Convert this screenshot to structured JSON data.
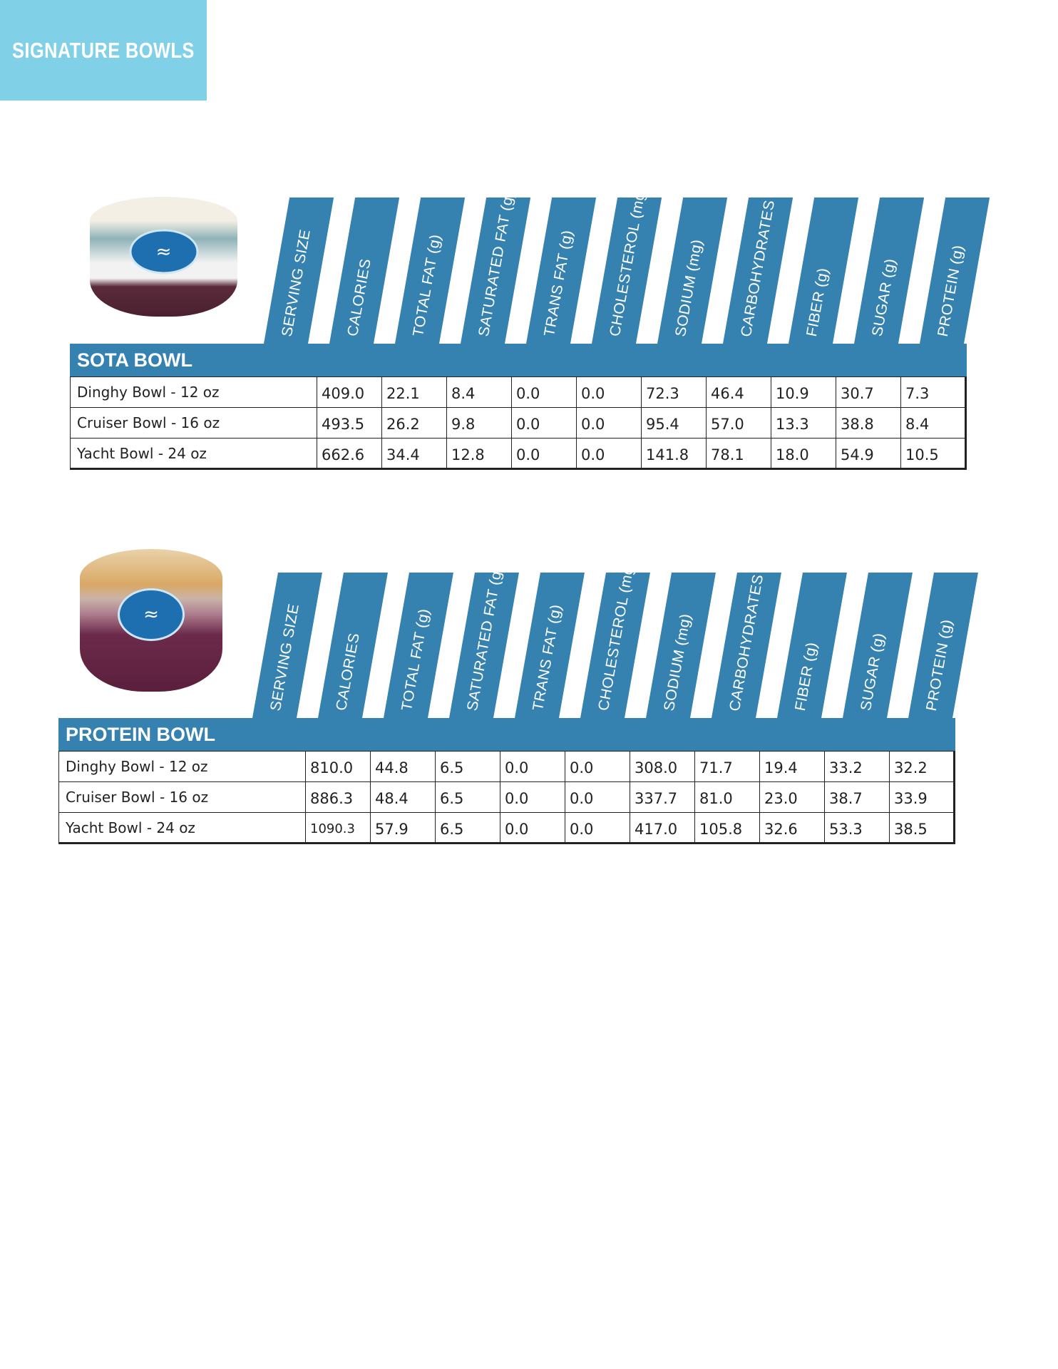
{
  "banner": {
    "title": "SIGNATURE BOWLS",
    "color": "#80d1e8"
  },
  "accent_color": "#3581b0",
  "columns": [
    "SERVING SIZE",
    "CALORIES",
    "TOTAL FAT (g)",
    "SATURATED FAT (g)",
    "TRANS FAT (g)",
    "CHOLESTEROL (mg)",
    "SODIUM (mg)",
    "CARBOHYDRATES",
    "FIBER (g)",
    "SUGAR (g)",
    "PROTEIN (g)"
  ],
  "sections": [
    {
      "title": "SOTA BOWL",
      "image": "bowl-photo",
      "rows": [
        {
          "size": "Dinghy Bowl - 12 oz",
          "values": [
            "409.0",
            "22.1",
            "8.4",
            "0.0",
            "0.0",
            "72.3",
            "46.4",
            "10.9",
            "30.7",
            "7.3"
          ]
        },
        {
          "size": "Cruiser Bowl - 16 oz",
          "values": [
            "493.5",
            "26.2",
            "9.8",
            "0.0",
            "0.0",
            "95.4",
            "57.0",
            "13.3",
            "38.8",
            "8.4"
          ]
        },
        {
          "size": "Yacht Bowl - 24 oz",
          "values": [
            "662.6",
            "34.4",
            "12.8",
            "0.0",
            "0.0",
            "141.8",
            "78.1",
            "18.0",
            "54.9",
            "10.5"
          ]
        }
      ]
    },
    {
      "title": "PROTEIN BOWL",
      "image": "bowl-photo",
      "rows": [
        {
          "size": "Dinghy Bowl - 12 oz",
          "values": [
            "810.0",
            "44.8",
            "6.5",
            "0.0",
            "0.0",
            "308.0",
            "71.7",
            "19.4",
            "33.2",
            "32.2"
          ]
        },
        {
          "size": "Cruiser Bowl - 16 oz",
          "values": [
            "886.3",
            "48.4",
            "6.5",
            "0.0",
            "0.0",
            "337.7",
            "81.0",
            "23.0",
            "38.7",
            "33.9"
          ]
        },
        {
          "size": "Yacht Bowl - 24 oz",
          "values": [
            "1090.3",
            "57.9",
            "6.5",
            "0.0",
            "0.0",
            "417.0",
            "105.8",
            "32.6",
            "53.3",
            "38.5"
          ]
        }
      ]
    }
  ]
}
